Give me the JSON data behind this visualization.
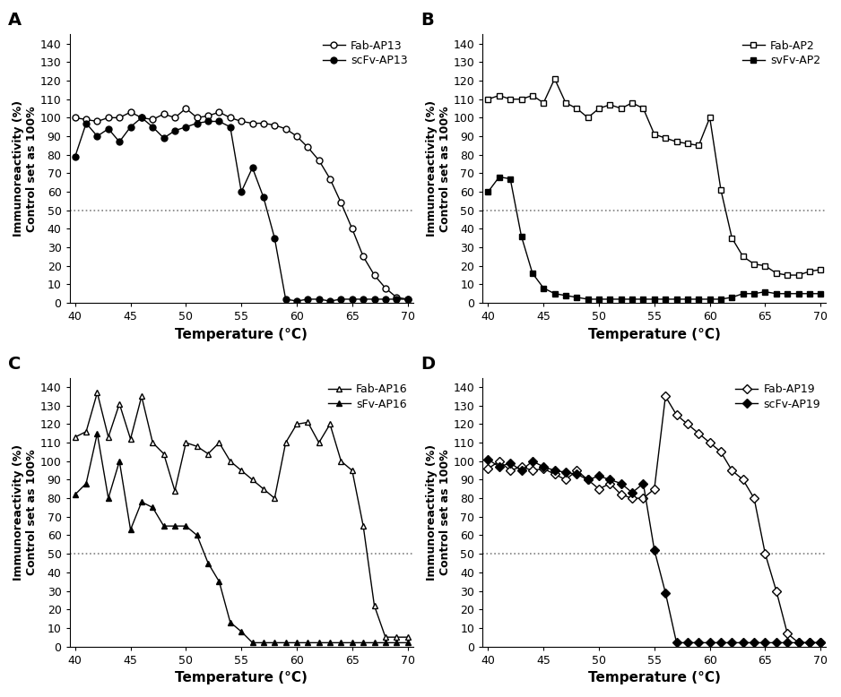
{
  "panel_A": {
    "label": "A",
    "legend1": "Fab-AP13",
    "legend2": "scFv-AP13",
    "open_x": [
      40,
      41,
      42,
      43,
      44,
      45,
      46,
      47,
      48,
      49,
      50,
      51,
      52,
      53,
      54,
      55,
      56,
      57,
      58,
      59,
      60,
      61,
      62,
      63,
      64,
      65,
      66,
      67,
      68,
      69,
      70
    ],
    "open_y": [
      100,
      99,
      98,
      100,
      100,
      103,
      100,
      99,
      102,
      100,
      105,
      100,
      101,
      103,
      100,
      98,
      97,
      97,
      96,
      94,
      90,
      84,
      77,
      67,
      54,
      40,
      25,
      15,
      8,
      3,
      2
    ],
    "filled_x": [
      40,
      41,
      42,
      43,
      44,
      45,
      46,
      47,
      48,
      49,
      50,
      51,
      52,
      53,
      54,
      55,
      56,
      57,
      58,
      59,
      60,
      61,
      62,
      63,
      64,
      65,
      66,
      67,
      68,
      69,
      70
    ],
    "filled_y": [
      79,
      97,
      90,
      94,
      87,
      95,
      100,
      95,
      89,
      93,
      95,
      97,
      98,
      98,
      95,
      60,
      73,
      57,
      35,
      2,
      1,
      2,
      2,
      1,
      2,
      2,
      2,
      2,
      2,
      2,
      2
    ]
  },
  "panel_B": {
    "label": "B",
    "legend1": "Fab-AP2",
    "legend2": "svFv-AP2",
    "open_x": [
      40,
      41,
      42,
      43,
      44,
      45,
      46,
      47,
      48,
      49,
      50,
      51,
      52,
      53,
      54,
      55,
      56,
      57,
      58,
      59,
      60,
      61,
      62,
      63,
      64,
      65,
      66,
      67,
      68,
      69,
      70
    ],
    "open_y": [
      110,
      112,
      110,
      110,
      112,
      108,
      121,
      108,
      105,
      100,
      105,
      107,
      105,
      108,
      105,
      91,
      89,
      87,
      86,
      85,
      100,
      61,
      35,
      25,
      21,
      20,
      16,
      15,
      15,
      17,
      18
    ],
    "filled_x": [
      40,
      41,
      42,
      43,
      44,
      45,
      46,
      47,
      48,
      49,
      50,
      51,
      52,
      53,
      54,
      55,
      56,
      57,
      58,
      59,
      60,
      61,
      62,
      63,
      64,
      65,
      66,
      67,
      68,
      69,
      70
    ],
    "filled_y": [
      60,
      68,
      67,
      36,
      16,
      8,
      5,
      4,
      3,
      2,
      2,
      2,
      2,
      2,
      2,
      2,
      2,
      2,
      2,
      2,
      2,
      2,
      3,
      5,
      5,
      6,
      5,
      5,
      5,
      5,
      5
    ]
  },
  "panel_C": {
    "label": "C",
    "legend1": "Fab-AP16",
    "legend2": "sFv-AP16",
    "open_x": [
      40,
      41,
      42,
      43,
      44,
      45,
      46,
      47,
      48,
      49,
      50,
      51,
      52,
      53,
      54,
      55,
      56,
      57,
      58,
      59,
      60,
      61,
      62,
      63,
      64,
      65,
      66,
      67,
      68,
      69,
      70
    ],
    "open_y": [
      113,
      116,
      137,
      113,
      131,
      112,
      135,
      110,
      104,
      84,
      110,
      108,
      104,
      110,
      100,
      95,
      90,
      85,
      80,
      110,
      120,
      121,
      110,
      120,
      100,
      95,
      65,
      22,
      5,
      5,
      5
    ],
    "filled_x": [
      40,
      41,
      42,
      43,
      44,
      45,
      46,
      47,
      48,
      49,
      50,
      51,
      52,
      53,
      54,
      55,
      56,
      57,
      58,
      59,
      60,
      61,
      62,
      63,
      64,
      65,
      66,
      67,
      68,
      69,
      70
    ],
    "filled_y": [
      82,
      88,
      115,
      80,
      100,
      63,
      78,
      75,
      65,
      65,
      65,
      60,
      45,
      35,
      13,
      8,
      2,
      2,
      2,
      2,
      2,
      2,
      2,
      2,
      2,
      2,
      2,
      2,
      2,
      2,
      2
    ]
  },
  "panel_D": {
    "label": "D",
    "legend1": "Fab-AP19",
    "legend2": "scFv-AP19",
    "open_x": [
      40,
      41,
      42,
      43,
      44,
      45,
      46,
      47,
      48,
      49,
      50,
      51,
      52,
      53,
      54,
      55,
      56,
      57,
      58,
      59,
      60,
      61,
      62,
      63,
      64,
      65,
      66,
      67,
      68,
      69,
      70
    ],
    "open_y": [
      96,
      100,
      95,
      97,
      95,
      96,
      93,
      90,
      95,
      90,
      85,
      88,
      82,
      80,
      80,
      85,
      135,
      125,
      120,
      115,
      110,
      105,
      95,
      90,
      80,
      50,
      30,
      7,
      2,
      2,
      2
    ],
    "filled_x": [
      40,
      41,
      42,
      43,
      44,
      45,
      46,
      47,
      48,
      49,
      50,
      51,
      52,
      53,
      54,
      55,
      56,
      57,
      58,
      59,
      60,
      61,
      62,
      63,
      64,
      65,
      66,
      67,
      68,
      69,
      70
    ],
    "filled_y": [
      101,
      97,
      99,
      95,
      100,
      97,
      95,
      94,
      93,
      90,
      92,
      90,
      88,
      83,
      88,
      52,
      29,
      2,
      2,
      2,
      2,
      2,
      2,
      2,
      2,
      2,
      2,
      2,
      2,
      2,
      2
    ]
  },
  "xlim": [
    39.5,
    70.5
  ],
  "ylim": [
    0,
    145
  ],
  "yticks": [
    0,
    10,
    20,
    30,
    40,
    50,
    60,
    70,
    80,
    90,
    100,
    110,
    120,
    130,
    140
  ],
  "xticks": [
    40,
    45,
    50,
    55,
    60,
    65,
    70
  ],
  "dotted_y": 50,
  "xlabel": "Temperature (°C)",
  "ylabel": "Immunoreactivity (%)\nControl set as 100%",
  "marker_size": 5,
  "line_width": 1.0
}
